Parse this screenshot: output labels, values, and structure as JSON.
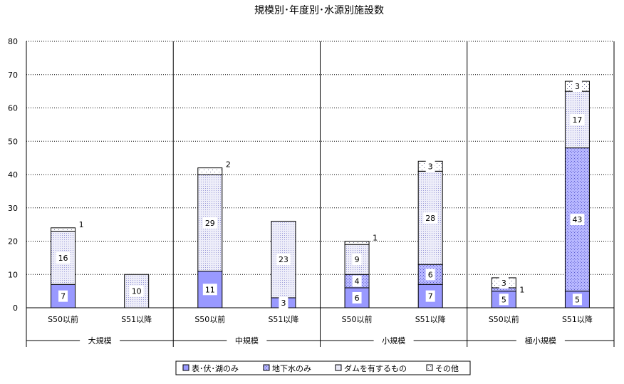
{
  "chart_data": {
    "type": "bar",
    "stacked": true,
    "title": "規模別･年度別･水源別施設数",
    "ylim": [
      0,
      80
    ],
    "yticks": [
      0,
      10,
      20,
      30,
      40,
      50,
      60,
      70,
      80
    ],
    "grid": "horizontal dotted",
    "legend_position": "bottom",
    "groups": [
      "大規模",
      "中規模",
      "小規模",
      "極小規模"
    ],
    "categories": [
      "S50以前",
      "S51以降",
      "S50以前",
      "S51以降",
      "S50以前",
      "S51以降",
      "S50以前",
      "S51以降"
    ],
    "category_group": [
      0,
      0,
      1,
      1,
      2,
      2,
      3,
      3
    ],
    "series": [
      {
        "name": "表･伏･湖のみ",
        "color": "#9999ff",
        "pattern": "solid",
        "values": [
          7,
          0,
          11,
          3,
          6,
          7,
          5,
          5
        ]
      },
      {
        "name": "地下水のみ",
        "color": "#9999ff",
        "pattern": "dots",
        "values": [
          0,
          0,
          0,
          0,
          4,
          6,
          1,
          43
        ]
      },
      {
        "name": "ダムを有するもの",
        "color": "#ccccee",
        "pattern": "fine",
        "values": [
          16,
          10,
          29,
          23,
          9,
          28,
          0,
          17
        ]
      },
      {
        "name": "その他",
        "color": "#ffffff",
        "pattern": "sparse",
        "values": [
          1,
          0,
          2,
          0,
          1,
          3,
          3,
          3
        ]
      }
    ],
    "data_labels": [
      [
        "7",
        "",
        "16",
        "1"
      ],
      [
        "",
        "",
        "10",
        ""
      ],
      [
        "11",
        "",
        "29",
        "2"
      ],
      [
        "3",
        "",
        "23",
        ""
      ],
      [
        "6",
        "4",
        "9",
        "1"
      ],
      [
        "7",
        "6",
        "28",
        "3"
      ],
      [
        "5",
        "1",
        "",
        "3"
      ],
      [
        "5",
        "43",
        "17",
        "3"
      ]
    ]
  }
}
